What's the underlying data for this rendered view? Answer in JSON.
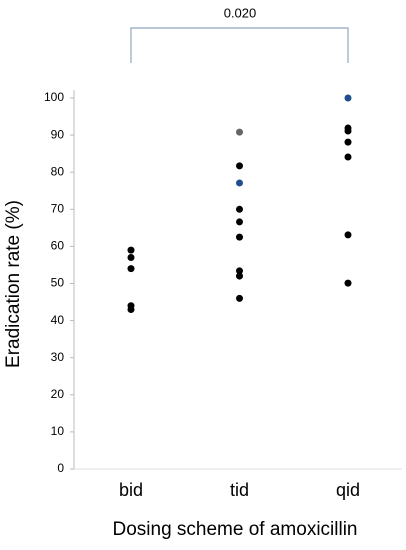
{
  "chart_data": {
    "type": "strip",
    "y_label": "Eradication rate (%)",
    "x_label": "Dosing scheme of amoxicillin",
    "bracket_label": "0.020",
    "categories": [
      "bid",
      "tid",
      "qid"
    ],
    "values": [
      [
        59,
        57,
        54,
        44,
        43
      ],
      [
        90.8,
        81.7,
        77.1,
        70,
        66.6,
        62.5,
        53.4,
        52,
        46
      ],
      [
        100,
        91.9,
        91.1,
        88.1,
        84.1,
        63.1,
        50.1
      ]
    ],
    "colors": [
      [
        "#000000",
        "#000000",
        "#000000",
        "#000000",
        "#000000"
      ],
      [
        "#666666",
        "#000000",
        "#1f4e8c",
        "#000000",
        "#000000",
        "#000000",
        "#000000",
        "#000000",
        "#000000"
      ],
      [
        "#1f4e8c",
        "#000000",
        "#000000",
        "#000000",
        "#000000",
        "#000000",
        "#000000"
      ]
    ],
    "ylim": [
      0,
      100
    ],
    "yticks": [
      0,
      10,
      20,
      30,
      40,
      50,
      60,
      70,
      80,
      90,
      100
    ]
  }
}
